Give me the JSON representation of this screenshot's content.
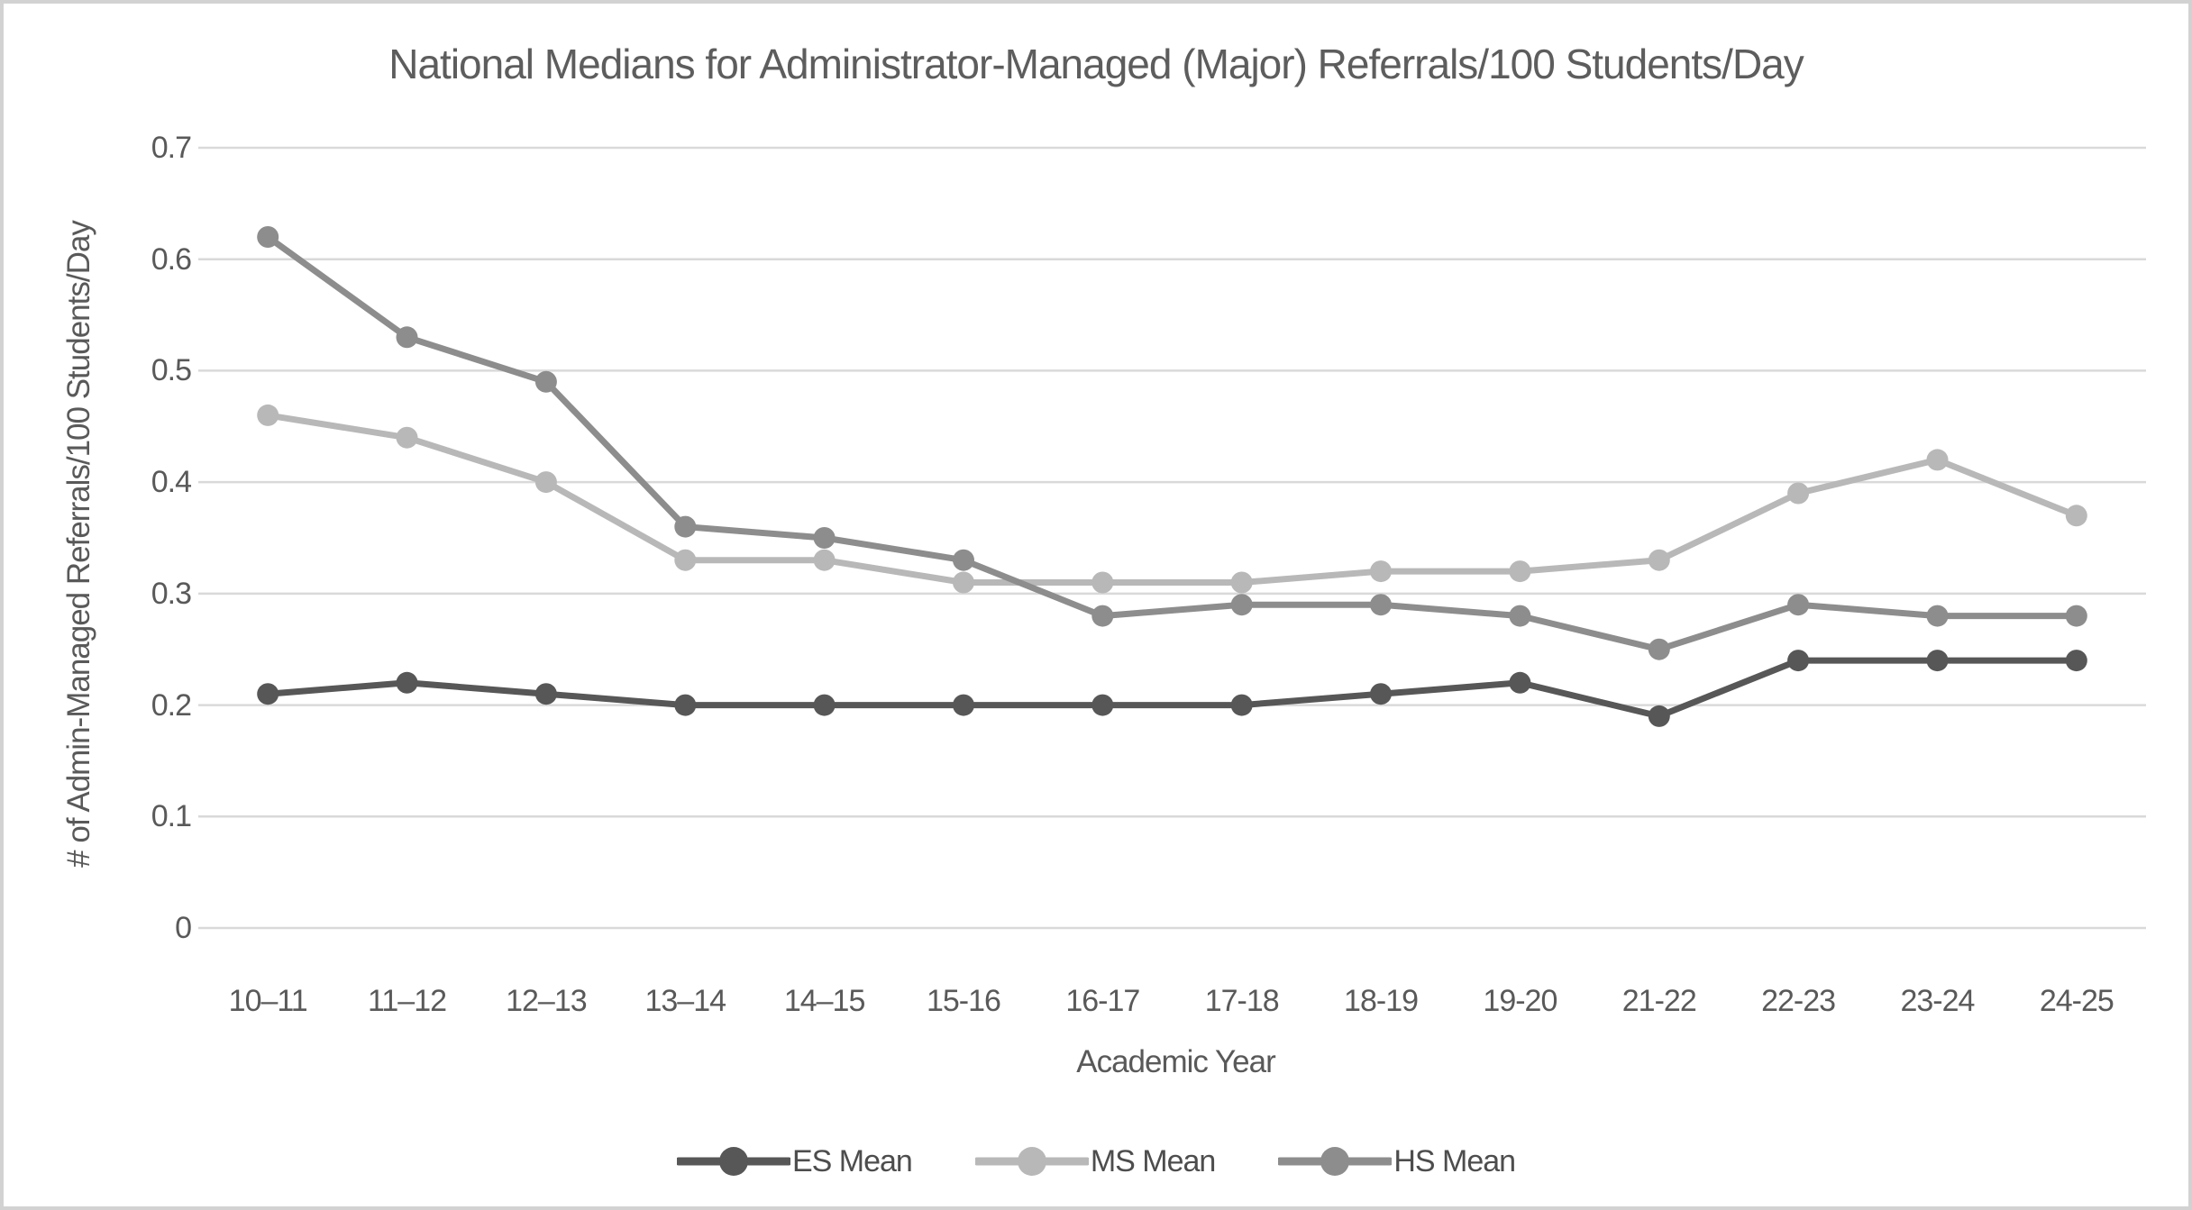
{
  "chart_data": {
    "type": "line",
    "title": "National Medians for Administrator-Managed (Major) Referrals/100 Students/Day",
    "xlabel": "Academic Year",
    "ylabel": "# of Admin-Managed Referrals/100 Students/Day",
    "categories": [
      "10–11",
      "11–12",
      "12–13",
      "13–14",
      "14–15",
      "15-16",
      "16-17",
      "17-18",
      "18-19",
      "19-20",
      "21-22",
      "22-23",
      "23-24",
      "24-25"
    ],
    "series": [
      {
        "name": "ES Mean",
        "color": "#575757",
        "values": [
          0.21,
          0.22,
          0.21,
          0.2,
          0.2,
          0.2,
          0.2,
          0.2,
          0.21,
          0.22,
          0.19,
          0.24,
          0.24,
          0.24
        ]
      },
      {
        "name": "MS Mean",
        "color": "#b8b8b8",
        "values": [
          0.46,
          0.44,
          0.4,
          0.33,
          0.33,
          0.31,
          0.31,
          0.31,
          0.32,
          0.32,
          0.33,
          0.39,
          0.42,
          0.37
        ]
      },
      {
        "name": "HS Mean",
        "color": "#8d8d8d",
        "values": [
          0.62,
          0.53,
          0.49,
          0.36,
          0.35,
          0.33,
          0.28,
          0.29,
          0.29,
          0.28,
          0.25,
          0.29,
          0.28,
          0.28
        ]
      }
    ],
    "ylim": [
      0,
      0.7
    ],
    "ytick_labels": [
      "0",
      "0.1",
      "0.2",
      "0.3",
      "0.4",
      "0.5",
      "0.6",
      "0.7"
    ],
    "grid": true,
    "gridline_color": "#d9d9d9",
    "text_color": "#595959",
    "legend_position": "bottom"
  }
}
